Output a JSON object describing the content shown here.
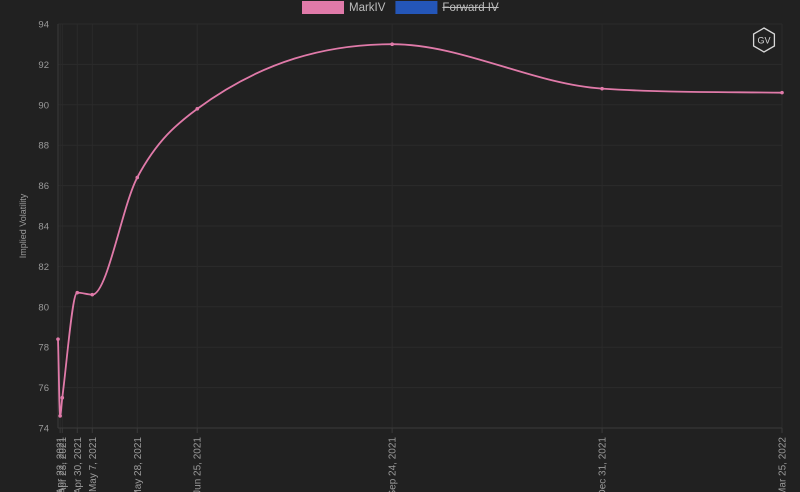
{
  "chart_data": {
    "type": "line",
    "ylabel": "Implied Volatility",
    "ylim": [
      74,
      94
    ],
    "ytick_labels": [
      "74",
      "76",
      "78",
      "80",
      "82",
      "84",
      "86",
      "88",
      "90",
      "92",
      "94"
    ],
    "ytick_values": [
      74,
      76,
      78,
      80,
      82,
      84,
      86,
      88,
      90,
      92,
      94
    ],
    "x_tick_labels": [
      "Apr 22, 2021",
      "Apr 23, 2021",
      "Apr 30, 2021",
      "May 7, 2021",
      "May 28, 2021",
      "Jun 25, 2021",
      "Sep 24, 2021",
      "Dec 31, 2021",
      "Mar 25, 2022"
    ],
    "x_tick_dates": [
      "2021-04-22",
      "2021-04-23",
      "2021-04-30",
      "2021-05-07",
      "2021-05-28",
      "2021-06-25",
      "2021-09-24",
      "2021-12-31",
      "2022-03-25"
    ],
    "xlim": [
      "2021-04-21",
      "2022-03-25"
    ],
    "legend_position": "top-center",
    "series": [
      {
        "name": "MarkIV",
        "color": "#e07aa9",
        "hidden": false,
        "x": [
          "2021-04-21",
          "2021-04-22",
          "2021-04-23",
          "2021-04-30",
          "2021-05-07",
          "2021-05-28",
          "2021-06-25",
          "2021-09-24",
          "2021-12-31",
          "2022-03-25"
        ],
        "values": [
          78.4,
          74.6,
          75.5,
          80.7,
          80.6,
          86.4,
          89.8,
          93.0,
          90.8,
          90.6
        ]
      },
      {
        "name": "Forward IV",
        "color": "#2456b8",
        "hidden": true,
        "x": [],
        "values": []
      }
    ],
    "grid": true,
    "logo_text": "GV",
    "colors": {
      "background": "#212121",
      "grid": "#2b2b2b",
      "tick_text": "#9a9a9a",
      "axis": "#3a3a3a",
      "legend_text": "#bdbdbd"
    }
  }
}
